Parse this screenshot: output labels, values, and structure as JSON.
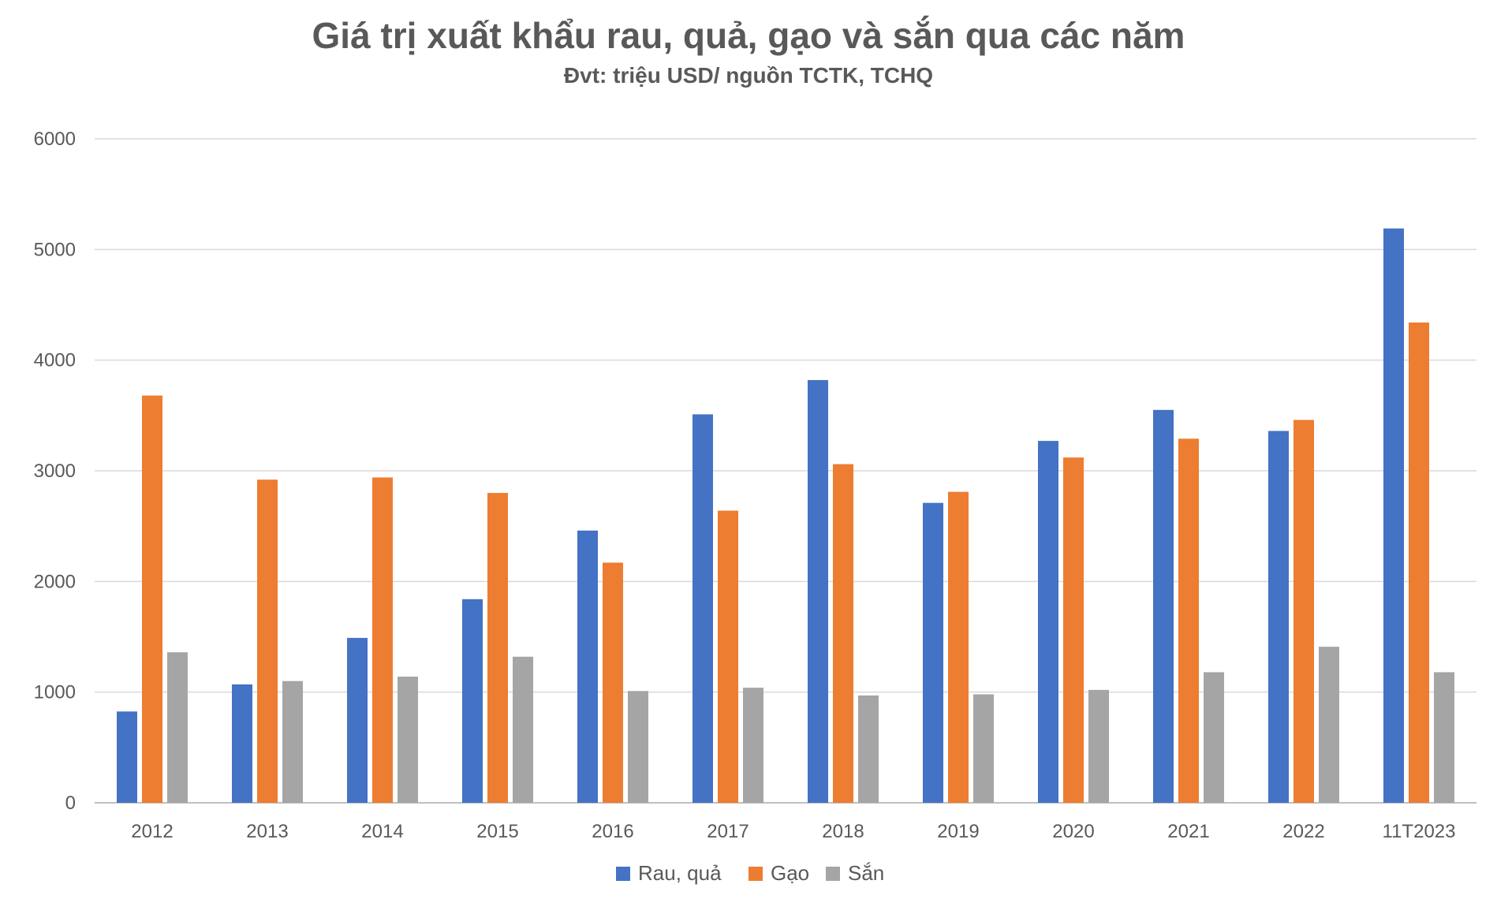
{
  "chart_data": {
    "type": "bar",
    "title": "Giá trị xuất khẩu rau, quả, gạo và sắn qua các năm",
    "subtitle": "Đvt: triệu USD/ nguồn TCTK, TCHQ",
    "categories": [
      "2012",
      "2013",
      "2014",
      "2015",
      "2016",
      "2017",
      "2018",
      "2019",
      "2020",
      "2021",
      "2022",
      "11T2023"
    ],
    "series": [
      {
        "name": "Rau, quả",
        "color": "#4472C4",
        "values": [
          825,
          1070,
          1490,
          1840,
          2460,
          3510,
          3820,
          2710,
          3270,
          3550,
          3360,
          5190
        ]
      },
      {
        "name": "Gạo",
        "color": "#ED7D31",
        "values": [
          3680,
          2920,
          2940,
          2800,
          2170,
          2640,
          3060,
          2810,
          3120,
          3290,
          3460,
          4340
        ]
      },
      {
        "name": "Sắn",
        "color": "#A5A5A5",
        "values": [
          1360,
          1100,
          1140,
          1320,
          1010,
          1040,
          970,
          980,
          1020,
          1180,
          1410,
          1180
        ]
      }
    ],
    "yticks": [
      "0",
      "1000",
      "2000",
      "3000",
      "4000",
      "5000",
      "6000"
    ],
    "ylim": [
      0,
      6000
    ],
    "grid": true,
    "legend_position": "bottom"
  }
}
